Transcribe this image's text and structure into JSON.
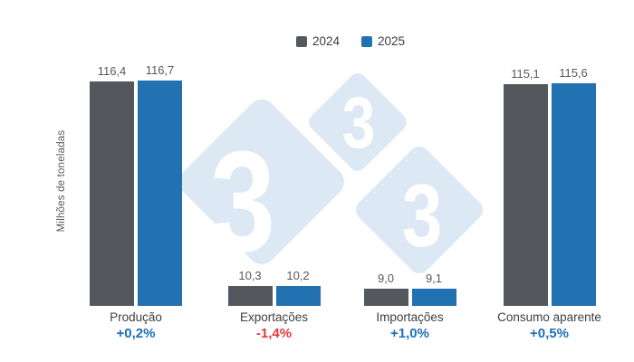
{
  "legend": {
    "items": [
      {
        "label": "2024",
        "color": "#54575c"
      },
      {
        "label": "2025",
        "color": "#2271b0"
      }
    ]
  },
  "watermark": {
    "digits": [
      "3",
      "3",
      "3"
    ],
    "diamond_color": "#dce9f4"
  },
  "chart_data": {
    "type": "bar",
    "title": "",
    "ylabel": "Milhões de toneladas",
    "categories": [
      "Produção",
      "Exportações",
      "Importações",
      "Consumo aparente"
    ],
    "series": [
      {
        "name": "2024",
        "color": "#54575c",
        "values": [
          116.4,
          10.3,
          9.0,
          115.1
        ]
      },
      {
        "name": "2025",
        "color": "#2271b0",
        "values": [
          116.7,
          10.2,
          9.1,
          115.6
        ]
      }
    ],
    "value_labels": [
      [
        "116,4",
        "116,7"
      ],
      [
        "10,3",
        "10,2"
      ],
      [
        "9,0",
        "9,1"
      ],
      [
        "115,1",
        "115,6"
      ]
    ],
    "changes": [
      {
        "text": "+0,2%",
        "color": "#1a70ba"
      },
      {
        "text": "-1,4%",
        "color": "#e8363d"
      },
      {
        "text": "+1,0%",
        "color": "#1a70ba"
      },
      {
        "text": "+0,5%",
        "color": "#1a70ba"
      }
    ],
    "ylim": [
      0,
      120
    ],
    "grid": false,
    "legend_position": "top-center"
  }
}
